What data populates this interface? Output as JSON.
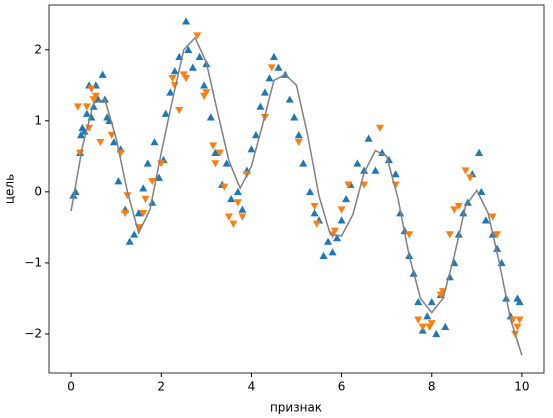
{
  "chart_data": {
    "type": "scatter",
    "x_label": "признак",
    "y_label": "цель",
    "xlim": [
      -0.49,
      10.49
    ],
    "ylim": [
      -2.55,
      2.63
    ],
    "xticks": [
      0,
      2,
      4,
      6,
      8,
      10
    ],
    "yticks": [
      {
        "value": -2,
        "label": "−2"
      },
      {
        "value": -1,
        "label": "−1"
      },
      0,
      1,
      2
    ],
    "series": [
      {
        "kind": "scatter",
        "marker": "triangle-up",
        "color": "#1f77b4",
        "x": [
          0.05,
          0.1,
          0.2,
          0.22,
          0.25,
          0.3,
          0.35,
          0.4,
          0.45,
          0.5,
          0.55,
          0.6,
          0.7,
          0.75,
          0.8,
          0.85,
          0.95,
          1.05,
          1.1,
          1.2,
          1.3,
          1.4,
          1.5,
          1.6,
          1.7,
          1.8,
          1.85,
          1.95,
          2.05,
          2.1,
          2.2,
          2.3,
          2.4,
          2.55,
          2.6,
          2.7,
          2.85,
          2.95,
          3.0,
          3.1,
          3.2,
          3.35,
          3.45,
          3.55,
          3.7,
          3.8,
          3.9,
          4.0,
          4.1,
          4.2,
          4.3,
          4.4,
          4.5,
          4.6,
          4.75,
          4.85,
          4.95,
          5.05,
          5.15,
          5.3,
          5.4,
          5.5,
          5.6,
          5.7,
          5.8,
          5.9,
          6.0,
          6.1,
          6.2,
          6.35,
          6.5,
          6.6,
          6.75,
          6.9,
          7.05,
          7.2,
          7.3,
          7.4,
          7.5,
          7.6,
          7.7,
          7.8,
          7.9,
          8.0,
          8.1,
          8.2,
          8.3,
          8.4,
          8.5,
          8.6,
          8.7,
          8.8,
          8.9,
          9.05,
          9.1,
          9.2,
          9.35,
          9.45,
          9.55,
          9.65,
          9.75,
          9.9,
          9.95
        ],
        "values": [
          -0.05,
          0.0,
          0.55,
          0.8,
          0.9,
          0.85,
          1.1,
          1.5,
          1.05,
          1.2,
          1.5,
          1.3,
          1.65,
          1.3,
          1.05,
          1.0,
          0.7,
          0.15,
          0.6,
          -0.25,
          -0.7,
          -0.6,
          -0.3,
          0.05,
          0.4,
          -0.15,
          0.7,
          0.2,
          0.45,
          1.1,
          1.4,
          1.7,
          1.9,
          2.4,
          2.0,
          1.75,
          1.9,
          1.5,
          1.8,
          1.05,
          0.55,
          0.1,
          0.4,
          -0.1,
          0.0,
          -0.25,
          0.3,
          0.6,
          0.8,
          1.2,
          1.4,
          1.6,
          1.9,
          1.75,
          1.65,
          1.3,
          1.05,
          0.8,
          0.4,
          0.0,
          -0.3,
          -0.4,
          -0.9,
          -0.7,
          -0.85,
          -0.65,
          -0.4,
          -0.1,
          0.1,
          0.4,
          0.3,
          0.75,
          0.3,
          0.55,
          0.45,
          0.25,
          -0.3,
          -0.55,
          -0.9,
          -1.15,
          -1.55,
          -1.95,
          -1.75,
          -1.55,
          -2.0,
          -1.45,
          -1.9,
          -1.2,
          -1.0,
          -0.6,
          -0.3,
          -0.15,
          0.25,
          0.55,
          0.0,
          -0.4,
          -0.6,
          -0.8,
          -1.0,
          -1.5,
          -1.75,
          -1.5,
          -1.55
        ]
      },
      {
        "kind": "scatter",
        "marker": "triangle-down",
        "color": "#ff7f0e",
        "x": [
          0.15,
          0.2,
          0.35,
          0.4,
          0.45,
          0.5,
          0.55,
          0.65,
          0.9,
          1.1,
          1.2,
          1.25,
          1.5,
          1.6,
          1.65,
          1.8,
          2.0,
          2.25,
          2.3,
          2.4,
          2.5,
          2.55,
          2.8,
          2.95,
          3.0,
          3.15,
          3.2,
          3.3,
          3.4,
          3.5,
          3.6,
          3.7,
          3.8,
          3.9,
          4.3,
          4.45,
          5.05,
          5.4,
          5.45,
          5.8,
          5.85,
          6.0,
          6.15,
          6.5,
          6.85,
          7.2,
          7.5,
          7.7,
          7.8,
          7.95,
          8.0,
          8.2,
          8.25,
          8.4,
          8.5,
          8.6,
          8.75,
          8.85,
          9.35,
          9.45,
          9.8,
          9.85,
          9.9,
          9.95
        ],
        "values": [
          1.2,
          0.55,
          1.2,
          0.9,
          1.45,
          1.3,
          1.35,
          0.7,
          0.8,
          0.55,
          -0.3,
          -0.05,
          -0.5,
          -0.3,
          -0.1,
          0.15,
          0.4,
          1.6,
          1.5,
          1.15,
          1.65,
          1.6,
          2.2,
          1.35,
          1.4,
          0.65,
          0.4,
          0.55,
          0.07,
          -0.35,
          -0.45,
          -0.15,
          -0.35,
          0.25,
          1.05,
          1.75,
          0.7,
          -0.2,
          -0.45,
          -0.6,
          -0.55,
          -0.25,
          0.1,
          0.1,
          0.9,
          0.1,
          -0.6,
          -1.8,
          -1.9,
          -1.9,
          -1.85,
          -1.45,
          -1.4,
          -0.6,
          -0.25,
          -0.2,
          0.3,
          0.2,
          -0.35,
          -0.6,
          -1.8,
          -2.0,
          -1.9,
          -1.8
        ]
      },
      {
        "kind": "line",
        "color": "#808080",
        "x": [
          0,
          0.25,
          0.5,
          0.75,
          1.0,
          1.25,
          1.5,
          1.75,
          2.0,
          2.25,
          2.5,
          2.75,
          3.0,
          3.25,
          3.5,
          3.75,
          4.0,
          4.25,
          4.5,
          4.75,
          5.0,
          5.25,
          5.5,
          5.75,
          6.0,
          6.25,
          6.5,
          6.75,
          7.0,
          7.25,
          7.5,
          7.75,
          8.0,
          8.25,
          8.5,
          8.75,
          9.0,
          9.25,
          9.5,
          9.75,
          10.0
        ],
        "values": [
          -0.27,
          0.63,
          1.25,
          1.3,
          0.75,
          0.0,
          -0.58,
          -0.25,
          0.55,
          1.3,
          2.0,
          2.17,
          1.82,
          1.12,
          0.44,
          0.05,
          0.36,
          0.95,
          1.57,
          1.65,
          1.5,
          0.79,
          -0.06,
          -0.6,
          -0.62,
          -0.32,
          0.27,
          0.58,
          0.5,
          -0.09,
          -0.9,
          -1.5,
          -1.7,
          -1.5,
          -0.9,
          -0.2,
          0.02,
          -0.3,
          -1.0,
          -1.8,
          -2.3
        ]
      }
    ]
  }
}
